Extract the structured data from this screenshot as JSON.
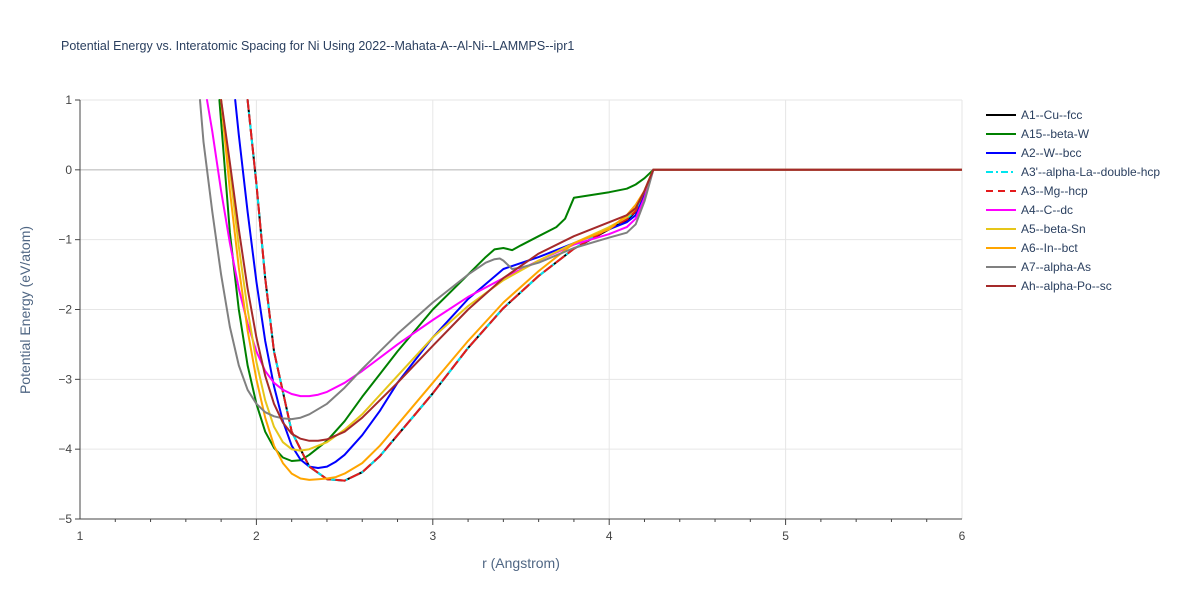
{
  "chart_data": {
    "type": "line",
    "title": "Potential Energy vs. Interatomic Spacing for Ni Using 2022--Mahata-A--Al-Ni--LAMMPS--ipr1",
    "xlabel": "r (Angstrom)",
    "ylabel": "Potential Energy (eV/atom)",
    "xlim": [
      1,
      6
    ],
    "ylim": [
      -5,
      1
    ],
    "xticks": [
      1,
      2,
      3,
      4,
      5,
      6
    ],
    "yticks": [
      -5,
      -4,
      -3,
      -2,
      -1,
      0,
      1
    ],
    "xtick_labels": [
      "1",
      "2",
      "3",
      "4",
      "5",
      "6"
    ],
    "ytick_labels": [
      "−5",
      "−4",
      "−3",
      "−2",
      "−1",
      "0",
      "1"
    ],
    "grid": true,
    "legend_position": "right",
    "series": [
      {
        "name": "A1--Cu--fcc",
        "color": "#000000",
        "dash": "solid",
        "x": [
          1.95,
          2.0,
          2.05,
          2.1,
          2.2,
          2.3,
          2.4,
          2.5,
          2.6,
          2.7,
          2.8,
          2.9,
          3.0,
          3.2,
          3.4,
          3.6,
          3.8,
          4.0,
          4.1,
          4.15,
          4.2,
          4.25,
          4.3,
          5.0,
          6.0
        ],
        "y": [
          1.0,
          -0.2,
          -1.55,
          -2.6,
          -3.75,
          -4.25,
          -4.43,
          -4.45,
          -4.33,
          -4.1,
          -3.8,
          -3.5,
          -3.2,
          -2.55,
          -1.98,
          -1.52,
          -1.13,
          -0.85,
          -0.72,
          -0.6,
          -0.3,
          0.0,
          0.0,
          0.0,
          0.0
        ]
      },
      {
        "name": "A15--beta-W",
        "color": "#008000",
        "dash": "solid",
        "x": [
          1.79,
          1.85,
          1.9,
          1.95,
          2.0,
          2.05,
          2.1,
          2.15,
          2.2,
          2.25,
          2.3,
          2.4,
          2.5,
          2.6,
          2.8,
          3.0,
          3.2,
          3.3,
          3.35,
          3.4,
          3.45,
          3.5,
          3.6,
          3.7,
          3.75,
          3.8,
          4.0,
          4.1,
          4.15,
          4.2,
          4.25,
          4.3,
          5.0,
          6.0
        ],
        "y": [
          1.0,
          -0.9,
          -2.0,
          -2.8,
          -3.35,
          -3.75,
          -3.98,
          -4.12,
          -4.17,
          -4.16,
          -4.08,
          -3.88,
          -3.6,
          -3.25,
          -2.6,
          -2.0,
          -1.5,
          -1.25,
          -1.14,
          -1.12,
          -1.15,
          -1.08,
          -0.95,
          -0.82,
          -0.7,
          -0.4,
          -0.32,
          -0.27,
          -0.21,
          -0.12,
          0.0,
          0.0,
          0.0,
          0.0
        ]
      },
      {
        "name": "A2--W--bcc",
        "color": "#0000ff",
        "dash": "solid",
        "x": [
          1.88,
          1.9,
          1.95,
          2.0,
          2.05,
          2.1,
          2.15,
          2.2,
          2.25,
          2.3,
          2.35,
          2.4,
          2.45,
          2.5,
          2.6,
          2.7,
          2.8,
          3.0,
          3.2,
          3.4,
          3.6,
          3.8,
          4.0,
          4.1,
          4.15,
          4.2,
          4.25,
          4.3,
          5.0,
          6.0
        ],
        "y": [
          1.0,
          0.5,
          -0.6,
          -1.6,
          -2.45,
          -3.1,
          -3.6,
          -3.95,
          -4.15,
          -4.25,
          -4.27,
          -4.25,
          -4.18,
          -4.08,
          -3.8,
          -3.45,
          -3.05,
          -2.4,
          -1.85,
          -1.42,
          -1.25,
          -1.05,
          -0.85,
          -0.75,
          -0.65,
          -0.35,
          0.0,
          0.0,
          0.0,
          0.0
        ]
      },
      {
        "name": "A3'--alpha-La--double-hcp",
        "color": "#00e5ee",
        "dash": "dashdot",
        "x": [
          1.95,
          2.0,
          2.05,
          2.1,
          2.2,
          2.3,
          2.4,
          2.5,
          2.6,
          2.7,
          2.8,
          2.9,
          3.0,
          3.2,
          3.4,
          3.6,
          3.8,
          4.0,
          4.1,
          4.15,
          4.2,
          4.25,
          4.3,
          5.0,
          6.0
        ],
        "y": [
          1.0,
          -0.2,
          -1.55,
          -2.6,
          -3.75,
          -4.25,
          -4.43,
          -4.45,
          -4.33,
          -4.1,
          -3.8,
          -3.5,
          -3.2,
          -2.55,
          -1.98,
          -1.52,
          -1.13,
          -0.82,
          -0.7,
          -0.58,
          -0.3,
          0.0,
          0.0,
          0.0,
          0.0
        ]
      },
      {
        "name": "A3--Mg--hcp",
        "color": "#e41a1c",
        "dash": "dash",
        "x": [
          1.95,
          2.0,
          2.05,
          2.1,
          2.2,
          2.3,
          2.4,
          2.5,
          2.6,
          2.7,
          2.8,
          2.9,
          3.0,
          3.2,
          3.4,
          3.6,
          3.8,
          4.0,
          4.1,
          4.15,
          4.2,
          4.25,
          4.3,
          5.0,
          6.0
        ],
        "y": [
          1.0,
          -0.2,
          -1.55,
          -2.6,
          -3.75,
          -4.25,
          -4.43,
          -4.45,
          -4.33,
          -4.1,
          -3.8,
          -3.5,
          -3.2,
          -2.55,
          -1.98,
          -1.52,
          -1.13,
          -0.84,
          -0.71,
          -0.59,
          -0.3,
          0.0,
          0.0,
          0.0,
          0.0
        ]
      },
      {
        "name": "A4--C--dc",
        "color": "#ff00ff",
        "dash": "solid",
        "x": [
          1.72,
          1.75,
          1.8,
          1.85,
          1.9,
          1.95,
          2.0,
          2.05,
          2.1,
          2.15,
          2.2,
          2.25,
          2.3,
          2.35,
          2.4,
          2.5,
          2.6,
          2.8,
          3.0,
          3.2,
          3.4,
          3.6,
          3.8,
          4.0,
          4.1,
          4.15,
          4.2,
          4.25,
          4.3,
          5.0,
          6.0
        ],
        "y": [
          1.0,
          0.55,
          -0.3,
          -1.05,
          -1.7,
          -2.2,
          -2.6,
          -2.88,
          -3.05,
          -3.15,
          -3.21,
          -3.24,
          -3.24,
          -3.22,
          -3.18,
          -3.05,
          -2.88,
          -2.5,
          -2.15,
          -1.82,
          -1.55,
          -1.3,
          -1.07,
          -0.92,
          -0.82,
          -0.7,
          -0.4,
          0.0,
          0.0,
          0.0,
          0.0
        ]
      },
      {
        "name": "A5--beta-Sn",
        "color": "#e6c619",
        "dash": "solid",
        "x": [
          1.8,
          1.85,
          1.9,
          1.95,
          2.0,
          2.05,
          2.1,
          2.15,
          2.2,
          2.25,
          2.3,
          2.35,
          2.4,
          2.5,
          2.6,
          2.8,
          3.0,
          3.2,
          3.4,
          3.6,
          3.8,
          4.0,
          4.1,
          4.15,
          4.2,
          4.25,
          4.3,
          5.0,
          6.0
        ],
        "y": [
          1.0,
          0.0,
          -1.1,
          -2.0,
          -2.75,
          -3.3,
          -3.68,
          -3.9,
          -4.0,
          -4.02,
          -4.0,
          -3.95,
          -3.9,
          -3.72,
          -3.5,
          -2.95,
          -2.4,
          -1.95,
          -1.58,
          -1.3,
          -1.05,
          -0.82,
          -0.68,
          -0.55,
          -0.3,
          0.0,
          0.0,
          0.0,
          0.0
        ]
      },
      {
        "name": "A6--In--bct",
        "color": "#ffa500",
        "dash": "solid",
        "x": [
          1.8,
          1.85,
          1.9,
          1.95,
          2.0,
          2.05,
          2.1,
          2.15,
          2.2,
          2.25,
          2.3,
          2.35,
          2.4,
          2.45,
          2.5,
          2.6,
          2.7,
          2.8,
          3.0,
          3.2,
          3.4,
          3.6,
          3.8,
          4.0,
          4.1,
          4.15,
          4.2,
          4.25,
          4.3,
          5.0,
          6.0
        ],
        "y": [
          1.0,
          -0.3,
          -1.4,
          -2.3,
          -3.0,
          -3.55,
          -3.95,
          -4.2,
          -4.35,
          -4.42,
          -4.44,
          -4.43,
          -4.42,
          -4.4,
          -4.35,
          -4.2,
          -3.95,
          -3.65,
          -3.05,
          -2.45,
          -1.9,
          -1.45,
          -1.05,
          -0.85,
          -0.65,
          -0.5,
          -0.3,
          0.0,
          0.0,
          0.0,
          0.0
        ]
      },
      {
        "name": "A7--alpha-As",
        "color": "#808080",
        "dash": "solid",
        "x": [
          1.68,
          1.7,
          1.75,
          1.8,
          1.85,
          1.9,
          1.95,
          2.0,
          2.05,
          2.1,
          2.15,
          2.2,
          2.25,
          2.3,
          2.4,
          2.5,
          2.6,
          2.8,
          3.0,
          3.2,
          3.3,
          3.35,
          3.38,
          3.4,
          3.45,
          3.5,
          3.6,
          3.8,
          4.0,
          4.1,
          4.15,
          4.2,
          4.25,
          4.3,
          5.0,
          6.0
        ],
        "y": [
          1.0,
          0.4,
          -0.6,
          -1.5,
          -2.25,
          -2.8,
          -3.15,
          -3.35,
          -3.47,
          -3.53,
          -3.56,
          -3.57,
          -3.55,
          -3.5,
          -3.35,
          -3.12,
          -2.85,
          -2.35,
          -1.9,
          -1.5,
          -1.33,
          -1.28,
          -1.27,
          -1.3,
          -1.42,
          -1.4,
          -1.33,
          -1.12,
          -0.97,
          -0.9,
          -0.78,
          -0.45,
          0.0,
          0.0,
          0.0,
          0.0
        ]
      },
      {
        "name": "Ah--alpha-Po--sc",
        "color": "#a52a2a",
        "dash": "solid",
        "x": [
          1.8,
          1.85,
          1.9,
          1.95,
          2.0,
          2.05,
          2.1,
          2.15,
          2.2,
          2.25,
          2.3,
          2.35,
          2.4,
          2.5,
          2.6,
          2.8,
          3.0,
          3.2,
          3.4,
          3.6,
          3.8,
          4.0,
          4.1,
          4.15,
          4.2,
          4.25,
          4.3,
          5.0,
          6.0
        ],
        "y": [
          1.0,
          0.1,
          -0.85,
          -1.7,
          -2.4,
          -2.95,
          -3.35,
          -3.62,
          -3.78,
          -3.85,
          -3.88,
          -3.88,
          -3.86,
          -3.75,
          -3.55,
          -3.05,
          -2.52,
          -2.0,
          -1.55,
          -1.2,
          -0.95,
          -0.75,
          -0.65,
          -0.55,
          -0.3,
          0.0,
          0.0,
          0.0,
          0.0
        ]
      }
    ]
  }
}
